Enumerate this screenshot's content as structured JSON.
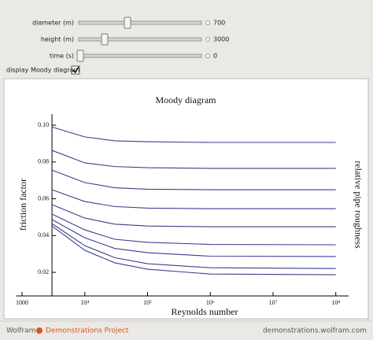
{
  "controls": {
    "sliders": [
      {
        "label": "diameter (m)",
        "value": "700"
      },
      {
        "label": "height (m)",
        "value": "3000"
      },
      {
        "label": "time (s)",
        "value": "0"
      }
    ],
    "checkbox": {
      "label": "display Moody diagram"
    }
  },
  "footer": {
    "brand": "Wolfram",
    "project": "Demonstrations Project",
    "url": "demonstrations.wolfram.com"
  },
  "chart_data": {
    "type": "line",
    "title": "Moody diagram",
    "xlabel": "Reynolds number",
    "ylabel": "friction factor",
    "y2label": "relative pipe roughness",
    "x": [
      3000,
      10000,
      30000,
      100000,
      1000000,
      100000000
    ],
    "xscale": "log",
    "xlim": [
      800,
      160000000
    ],
    "xticks": [
      1000,
      {
        "value": 10000,
        "label": "10⁴"
      },
      {
        "value": 100000,
        "label": "10⁵"
      },
      {
        "value": 1000000,
        "label": "10⁶"
      },
      {
        "value": 10000000,
        "label": "10⁷"
      },
      {
        "value": 100000000,
        "label": "10⁸"
      }
    ],
    "ylim": [
      0.0072,
      0.106
    ],
    "yticks": [
      0.02,
      0.04,
      0.06,
      0.08,
      {
        "value": 0.1,
        "label": "0.10"
      }
    ],
    "color": "#3b3f8c",
    "series": [
      {
        "values": [
          0.099,
          0.0936,
          0.0915,
          0.091,
          0.0906,
          0.0906
        ]
      },
      {
        "values": [
          0.0863,
          0.0795,
          0.0775,
          0.0769,
          0.0765,
          0.0765
        ]
      },
      {
        "values": [
          0.0756,
          0.0688,
          0.066,
          0.0652,
          0.0649,
          0.0649
        ]
      },
      {
        "values": [
          0.0649,
          0.0585,
          0.0558,
          0.0549,
          0.0546,
          0.0546
        ]
      },
      {
        "values": [
          0.0568,
          0.0495,
          0.0462,
          0.0452,
          0.0448,
          0.0448
        ]
      },
      {
        "values": [
          0.0517,
          0.0431,
          0.038,
          0.0363,
          0.0352,
          0.035
        ]
      },
      {
        "values": [
          0.0487,
          0.0388,
          0.033,
          0.0307,
          0.0288,
          0.0286
        ]
      },
      {
        "values": [
          0.0465,
          0.0345,
          0.028,
          0.0247,
          0.0225,
          0.0221
        ]
      },
      {
        "values": [
          0.0452,
          0.032,
          0.0252,
          0.0217,
          0.0191,
          0.0187
        ]
      }
    ]
  }
}
